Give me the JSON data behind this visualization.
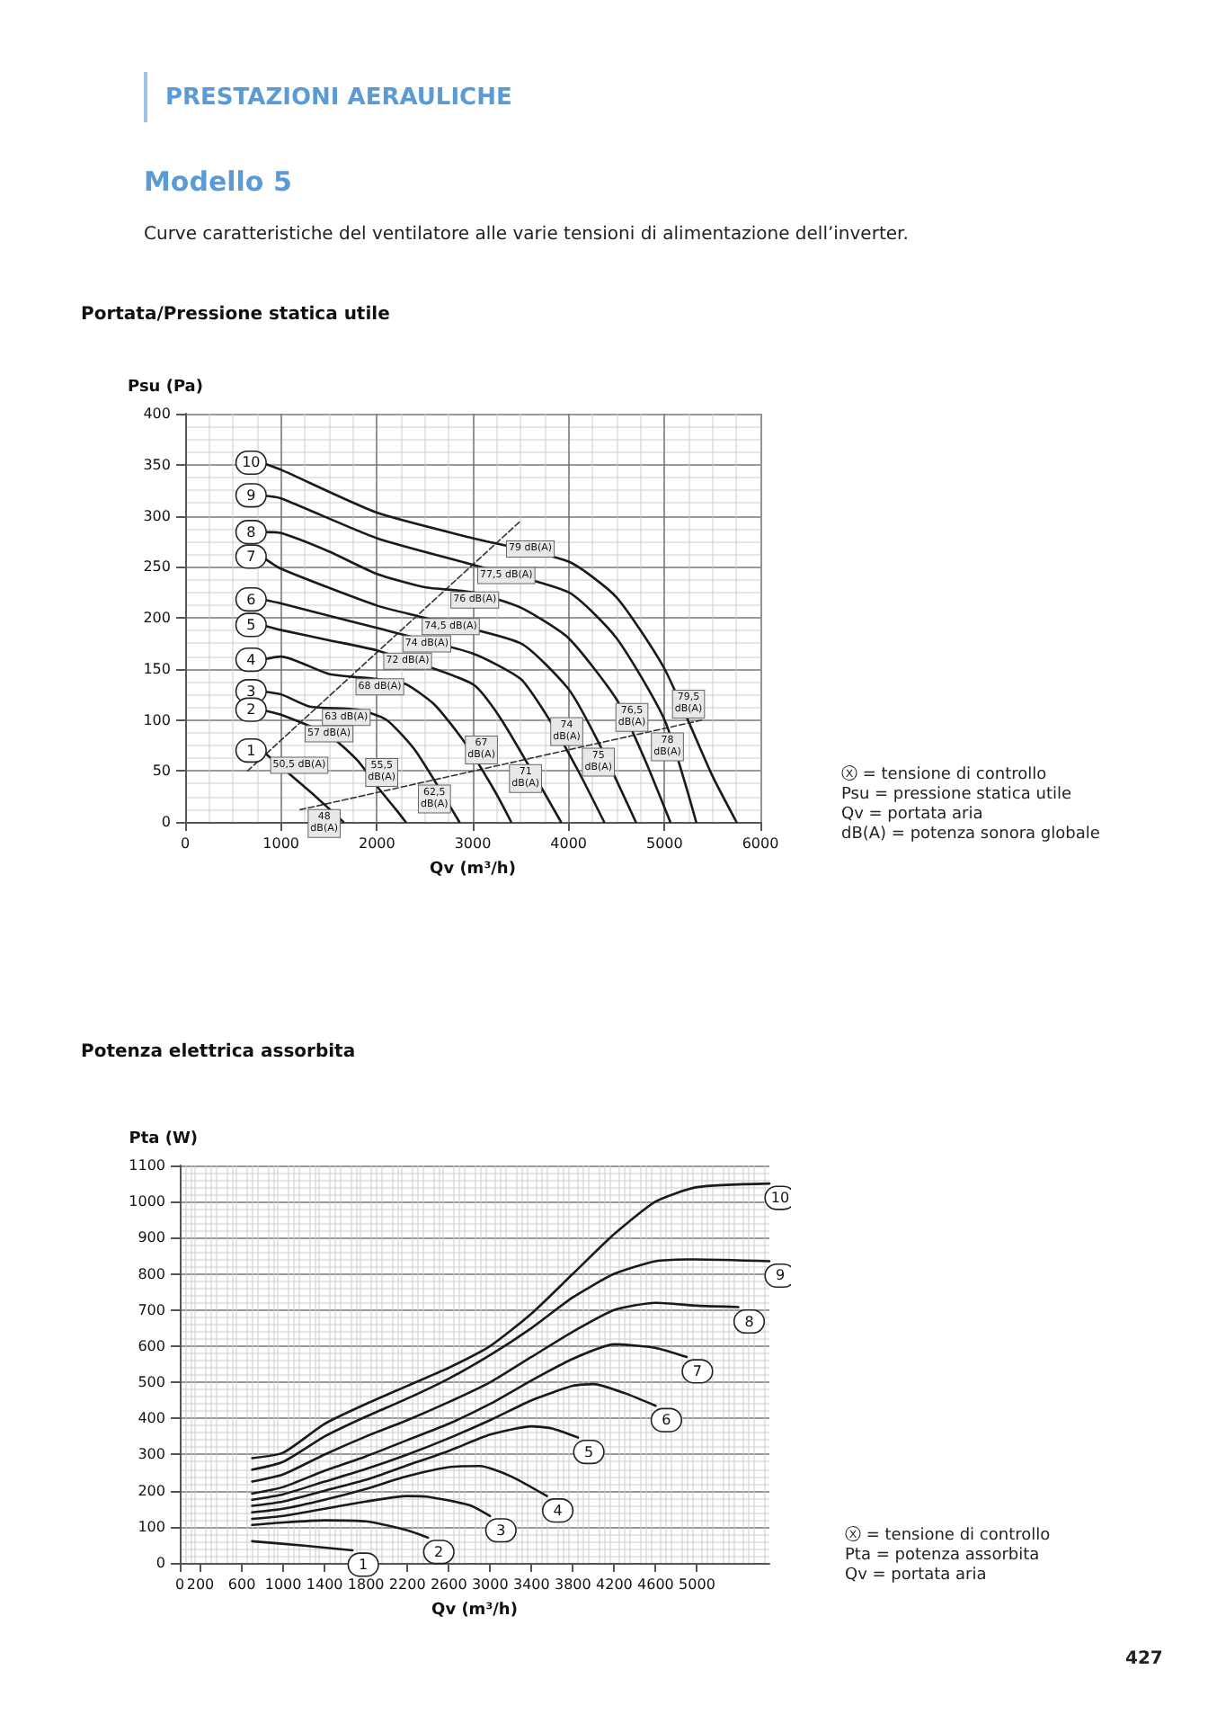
{
  "chart_data": [
    {
      "type": "other",
      "title": "PRESTAZIONI AERAULICHE",
      "subtitle": "Modello 5",
      "annotations": [
        "Curve caratteristiche del ventilatore alle varie tensioni di alimentazione dell’inverter.",
        "427"
      ]
    },
    {
      "type": "line",
      "title": "Portata/Pressione statica utile",
      "xlabel": "Qv (m³/h)",
      "ylabel": "Psu (Pa)",
      "xlim": [
        0,
        6000
      ],
      "xticks": [
        0,
        1000,
        2000,
        3000,
        4000,
        5000,
        6000
      ],
      "ylim": [
        0,
        400
      ],
      "yticks": [
        0,
        50,
        100,
        150,
        200,
        250,
        300,
        350,
        400
      ],
      "grid": true,
      "marker": "none",
      "line_style": "solid",
      "legend": "left",
      "series": [
        {
          "name": "10",
          "color": "#1a1a1a",
          "x": [
            800,
            1000,
            2000,
            3000,
            4000,
            4500,
            5000,
            5500,
            5750
          ],
          "values": [
            352,
            345,
            303,
            278,
            255,
            220,
            150,
            45,
            0
          ]
        },
        {
          "name": "9",
          "color": "#1a1a1a",
          "x": [
            800,
            1000,
            2000,
            3000,
            4000,
            4500,
            5000,
            5330
          ],
          "values": [
            320,
            317,
            278,
            252,
            225,
            180,
            100,
            0
          ]
        },
        {
          "name": "8",
          "color": "#1a1a1a",
          "x": [
            800,
            1000,
            1500,
            2000,
            2500,
            3000,
            3500,
            4000,
            4500,
            4800,
            5060
          ],
          "values": [
            284,
            283,
            265,
            243,
            230,
            225,
            210,
            180,
            120,
            60,
            0
          ]
        },
        {
          "name": "7",
          "color": "#1a1a1a",
          "x": [
            800,
            1000,
            2000,
            2500,
            3500,
            4000,
            4300,
            4700
          ],
          "values": [
            260,
            248,
            212,
            200,
            175,
            130,
            80,
            0
          ]
        },
        {
          "name": "6",
          "color": "#1a1a1a",
          "x": [
            800,
            1000,
            2000,
            3000,
            3500,
            3800,
            4100,
            4370
          ],
          "values": [
            218,
            214,
            190,
            165,
            140,
            100,
            50,
            0
          ]
        },
        {
          "name": "5",
          "color": "#1a1a1a",
          "x": [
            800,
            1000,
            1500,
            2000,
            3000,
            3300,
            3920
          ],
          "values": [
            193,
            188,
            178,
            168,
            135,
            100,
            0
          ]
        },
        {
          "name": "4",
          "color": "#1a1a1a",
          "x": [
            800,
            1000,
            1500,
            2000,
            2300,
            2600,
            2900,
            3200,
            3400
          ],
          "values": [
            159,
            162,
            145,
            140,
            135,
            115,
            80,
            35,
            0
          ]
        },
        {
          "name": "3",
          "color": "#1a1a1a",
          "x": [
            800,
            1000,
            1300,
            1800,
            2100,
            2400,
            2860
          ],
          "values": [
            128,
            125,
            113,
            110,
            100,
            70,
            0
          ]
        },
        {
          "name": "2",
          "color": "#1a1a1a",
          "x": [
            800,
            1000,
            1500,
            1800,
            2000,
            2200,
            2300
          ],
          "values": [
            110,
            105,
            85,
            60,
            35,
            12,
            0
          ]
        },
        {
          "name": "1",
          "color": "#1a1a1a",
          "x": [
            800,
            1300,
            1500,
            1650
          ],
          "values": [
            70,
            30,
            13,
            0
          ]
        },
        {
          "color": "#333333",
          "line_style": "dashed",
          "x": [
            650,
            3500
          ],
          "values": [
            50,
            295
          ]
        },
        {
          "color": "#333333",
          "line_style": "dashed",
          "x": [
            1200,
            5400
          ],
          "values": [
            12,
            100
          ]
        }
      ],
      "annotations": [
        {
          "text": "79 dB(A)",
          "x": 3300,
          "y": 278
        },
        {
          "text": "77,5 dB(A)",
          "x": 3000,
          "y": 252
        },
        {
          "text": "76 dB(A)",
          "x": 2720,
          "y": 228
        },
        {
          "text": "74,5 dB(A)",
          "x": 2420,
          "y": 202
        },
        {
          "text": "74 dB(A)",
          "x": 2220,
          "y": 185
        },
        {
          "text": "72 dB(A)",
          "x": 2020,
          "y": 168
        },
        {
          "text": "68 dB(A)",
          "x": 1730,
          "y": 143
        },
        {
          "text": "63 dB(A)",
          "x": 1380,
          "y": 113
        },
        {
          "text": "57 dB(A)",
          "x": 1200,
          "y": 97
        },
        {
          "text": "50,5 dB(A)",
          "x": 840,
          "y": 66
        },
        {
          "text": "79,5 dB(A)",
          "x": 5250,
          "y": 97
        },
        {
          "text": "78 dB(A)",
          "x": 5030,
          "y": 92
        },
        {
          "text": "76,5 dB(A)",
          "x": 4660,
          "y": 84
        },
        {
          "text": "75 dB(A)",
          "x": 4310,
          "y": 77
        },
        {
          "text": "74 dB(A)",
          "x": 3980,
          "y": 70
        },
        {
          "text": "71 dB(A)",
          "x": 3550,
          "y": 61
        },
        {
          "text": "67 dB(A)",
          "x": 3090,
          "y": 52
        },
        {
          "text": "62,5 dB(A)",
          "x": 2600,
          "y": 41
        },
        {
          "text": "55,5 dB(A)",
          "x": 2050,
          "y": 30
        },
        {
          "text": "48 dB(A)",
          "x": 1450,
          "y": 17
        },
        "ⓧ = tensione di controllo",
        "Psu = pressione statica utile",
        "Qv = portata aria",
        "dB(A) = potenza sonora globale"
      ]
    },
    {
      "type": "line",
      "title": "Potenza elettrica assorbita",
      "xlabel": "Qv (m³/h)",
      "ylabel": "Pta (W)",
      "xlim": [
        0,
        5700
      ],
      "xticks": [
        0,
        200,
        600,
        1000,
        1400,
        1800,
        2200,
        2600,
        3000,
        3400,
        3800,
        4200,
        4600,
        5000
      ],
      "ylim": [
        0,
        1100
      ],
      "yticks": [
        0,
        100,
        200,
        300,
        400,
        500,
        600,
        700,
        800,
        900,
        1000,
        1100
      ],
      "grid": true,
      "marker": "none",
      "line_style": "solid",
      "series": [
        {
          "name": "10",
          "color": "#1a1a1a",
          "x": [
            700,
            1000,
            1400,
            1800,
            2200,
            2600,
            3000,
            3400,
            3800,
            4200,
            4600,
            5000,
            5700
          ],
          "values": [
            290,
            305,
            385,
            440,
            490,
            540,
            600,
            690,
            800,
            910,
            1000,
            1040,
            1050
          ]
        },
        {
          "name": "9",
          "color": "#1a1a1a",
          "x": [
            700,
            1000,
            1400,
            1800,
            2200,
            2600,
            3000,
            3400,
            3800,
            4200,
            4600,
            5000,
            5700
          ],
          "values": [
            258,
            280,
            350,
            405,
            455,
            510,
            575,
            650,
            735,
            800,
            835,
            840,
            835
          ]
        },
        {
          "name": "8",
          "color": "#1a1a1a",
          "x": [
            700,
            1000,
            1400,
            1800,
            2200,
            2600,
            3000,
            3400,
            3800,
            4200,
            4600,
            5000,
            5400
          ],
          "values": [
            225,
            245,
            300,
            350,
            395,
            445,
            500,
            570,
            640,
            700,
            720,
            712,
            708
          ]
        },
        {
          "name": "7",
          "color": "#1a1a1a",
          "x": [
            700,
            1000,
            1400,
            1800,
            2200,
            2600,
            3000,
            3400,
            3800,
            4200,
            4600,
            4900
          ],
          "values": [
            192,
            210,
            255,
            295,
            340,
            385,
            440,
            505,
            565,
            605,
            595,
            570
          ]
        },
        {
          "name": "6",
          "color": "#1a1a1a",
          "x": [
            700,
            1000,
            1400,
            1800,
            2200,
            2600,
            3000,
            3400,
            3800,
            4000,
            4300,
            4600
          ],
          "values": [
            175,
            190,
            225,
            260,
            300,
            345,
            395,
            450,
            490,
            495,
            470,
            435
          ]
        },
        {
          "name": "5",
          "color": "#1a1a1a",
          "x": [
            700,
            1000,
            1400,
            1800,
            2200,
            2600,
            3000,
            3400,
            3600,
            3850
          ],
          "values": [
            158,
            170,
            200,
            230,
            270,
            310,
            355,
            378,
            372,
            347
          ]
        },
        {
          "name": "4",
          "color": "#1a1a1a",
          "x": [
            700,
            1000,
            1400,
            1800,
            2200,
            2600,
            2900,
            3200,
            3550
          ],
          "values": [
            140,
            150,
            175,
            205,
            240,
            265,
            268,
            240,
            185
          ]
        },
        {
          "name": "3",
          "color": "#1a1a1a",
          "x": [
            700,
            1000,
            1400,
            1800,
            2200,
            2400,
            2800,
            3000
          ],
          "values": [
            122,
            130,
            150,
            170,
            185,
            183,
            160,
            130
          ]
        },
        {
          "name": "2",
          "color": "#1a1a1a",
          "x": [
            700,
            1000,
            1400,
            1800,
            2200,
            2400
          ],
          "values": [
            105,
            112,
            118,
            115,
            90,
            70
          ]
        },
        {
          "name": "1",
          "color": "#1a1a1a",
          "x": [
            700,
            1200,
            1670
          ],
          "values": [
            60,
            48,
            35
          ]
        }
      ],
      "annotations": [
        "ⓧ = tensione di controllo",
        "Pta = potenza assorbita",
        "Qv = portata aria"
      ]
    }
  ]
}
